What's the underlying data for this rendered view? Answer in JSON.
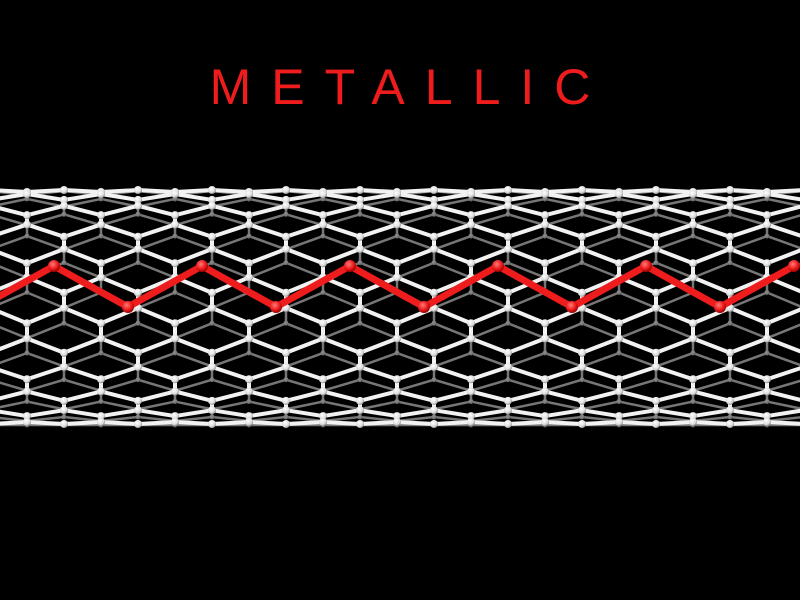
{
  "title": "METALLIC",
  "colors": {
    "background": "#000000",
    "title": "#ee1c1c",
    "lattice": "#f2f2f2",
    "highlight_path": "#ee1c1c"
  },
  "subject": "nanotube-lattice"
}
